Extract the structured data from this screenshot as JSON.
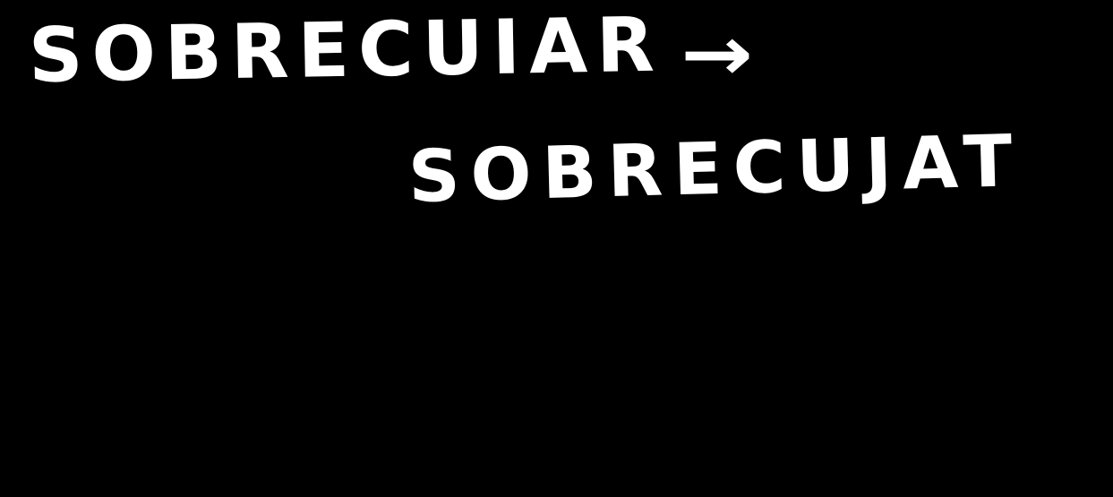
{
  "handwriting": {
    "line1": {
      "word": "SOBRECUIAR",
      "arrow": "→"
    },
    "line2": {
      "word": "SOBRECUJAT"
    },
    "colors": {
      "background": "#000000",
      "ink": "#ffffff"
    }
  }
}
